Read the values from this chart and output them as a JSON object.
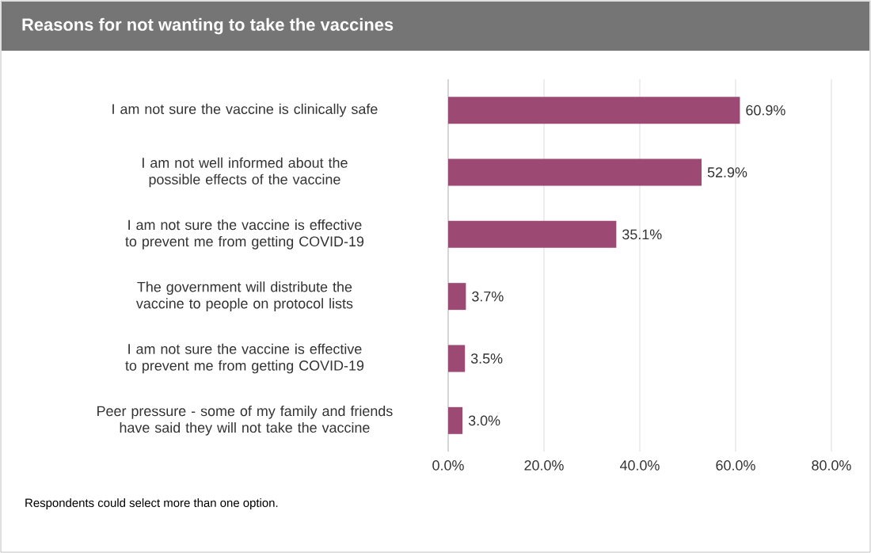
{
  "chart_data": {
    "type": "bar",
    "orientation": "horizontal",
    "title": "Reasons for not wanting to take the vaccines",
    "categories": [
      "I am not sure the vaccine is clinically safe",
      "I am not well informed about the possible effects of the vaccine",
      "I am not sure the vaccine is effective to prevent me from getting COVID-19",
      "The government will distribute the vaccine to people on protocol lists",
      "I am not sure the vaccine is effective to prevent me from getting COVID-19",
      "Peer pressure - some of my family and friends have said they will not take the vaccine"
    ],
    "values": [
      60.9,
      52.9,
      35.1,
      3.7,
      3.5,
      3.0
    ],
    "value_labels": [
      "60.9%",
      "52.9%",
      "35.1%",
      "3.7%",
      "3.5%",
      "3.0%"
    ],
    "color": "#9c4a74",
    "xlim": [
      0,
      80
    ],
    "xticks": [
      {
        "value": 0,
        "label": "0.0%"
      },
      {
        "value": 20,
        "label": "20.0%"
      },
      {
        "value": 40,
        "label": "40.0%"
      },
      {
        "value": 60,
        "label": "60.0%"
      },
      {
        "value": 80,
        "label": "80.0%"
      }
    ],
    "grid": "x",
    "annotations": [
      "Respondents could select more than one option."
    ]
  }
}
